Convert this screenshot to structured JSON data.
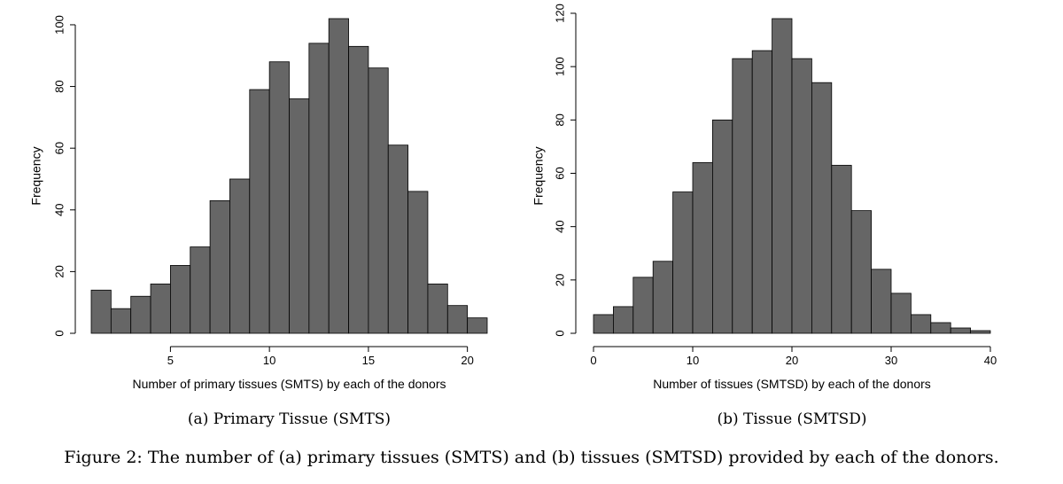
{
  "figure_caption": "Figure 2: The number of (a) primary tissues (SMTS) and (b) tissues (SMTSD) provided by each of the donors.",
  "bar_color": "#666666",
  "chart_data": [
    {
      "type": "bar",
      "subcaption": "(a) Primary Tissue (SMTS)",
      "xlabel": "Number of primary tissues (SMTS) by each of the donors",
      "ylabel": "Frequency",
      "bin_edges": [
        1,
        2,
        3,
        4,
        5,
        6,
        7,
        8,
        9,
        10,
        11,
        12,
        13,
        14,
        15,
        16,
        17,
        18,
        19,
        20,
        21
      ],
      "values": [
        14,
        8,
        12,
        16,
        22,
        28,
        43,
        50,
        79,
        88,
        76,
        94,
        102,
        93,
        86,
        61,
        46,
        16,
        9,
        5
      ],
      "xlim": [
        1,
        21
      ],
      "ylim": [
        0,
        102
      ],
      "xticks": [
        5,
        10,
        15,
        20
      ],
      "yticks": [
        0,
        20,
        40,
        60,
        80,
        100
      ],
      "grid": false
    },
    {
      "type": "bar",
      "subcaption": "(b) Tissue (SMTSD)",
      "xlabel": "Number of tissues (SMTSD) by each of the donors",
      "ylabel": "Frequency",
      "bin_edges": [
        0,
        2,
        4,
        6,
        8,
        10,
        12,
        14,
        16,
        18,
        20,
        22,
        24,
        26,
        28,
        30,
        32,
        34,
        36,
        38,
        40
      ],
      "values": [
        7,
        10,
        21,
        27,
        53,
        64,
        80,
        103,
        106,
        118,
        103,
        94,
        63,
        46,
        24,
        15,
        7,
        4,
        2,
        1
      ],
      "xlim": [
        0,
        40
      ],
      "ylim": [
        0,
        118
      ],
      "xticks": [
        0,
        10,
        20,
        30,
        40
      ],
      "yticks": [
        0,
        20,
        40,
        60,
        80,
        100,
        120
      ],
      "grid": false
    }
  ]
}
